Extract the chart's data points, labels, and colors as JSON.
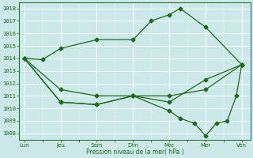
{
  "xlabel": "Pression niveau de la mer( hPa )",
  "ylim": [
    1007.5,
    1018.5
  ],
  "yticks": [
    1008,
    1009,
    1010,
    1011,
    1012,
    1013,
    1014,
    1015,
    1016,
    1017,
    1018
  ],
  "xtick_labels": [
    "Lun",
    "Jeu",
    "Sam",
    "Dim",
    "Mar",
    "Mer",
    "Ven"
  ],
  "xtick_positions": [
    0,
    1,
    2,
    3,
    4,
    5,
    6
  ],
  "bg_color": "#cce8e8",
  "line_color": "#1a6b1a",
  "line1_x": [
    0,
    0.5,
    1,
    2,
    3,
    3.5,
    4.0,
    4.3,
    5.0,
    6
  ],
  "line1_y": [
    1014.0,
    1013.9,
    1014.8,
    1015.5,
    1015.5,
    1017.0,
    1017.5,
    1018.0,
    1016.5,
    1013.5
  ],
  "line2_x": [
    0,
    1,
    2,
    3,
    4,
    5,
    6
  ],
  "line2_y": [
    1014.0,
    1011.5,
    1011.0,
    1011.0,
    1011.0,
    1011.5,
    1013.5
  ],
  "line3_x": [
    0,
    1,
    2,
    3,
    4,
    5,
    6
  ],
  "line3_y": [
    1014.0,
    1010.5,
    1010.3,
    1011.0,
    1010.5,
    1012.3,
    1013.5
  ],
  "line4_x": [
    0,
    1,
    2,
    3,
    4.0,
    4.3,
    4.7,
    5.0,
    5.3,
    5.6,
    5.85,
    6
  ],
  "line4_y": [
    1014.0,
    1010.5,
    1010.3,
    1011.0,
    1009.8,
    1009.2,
    1008.8,
    1007.8,
    1008.8,
    1009.0,
    1011.0,
    1013.5
  ]
}
